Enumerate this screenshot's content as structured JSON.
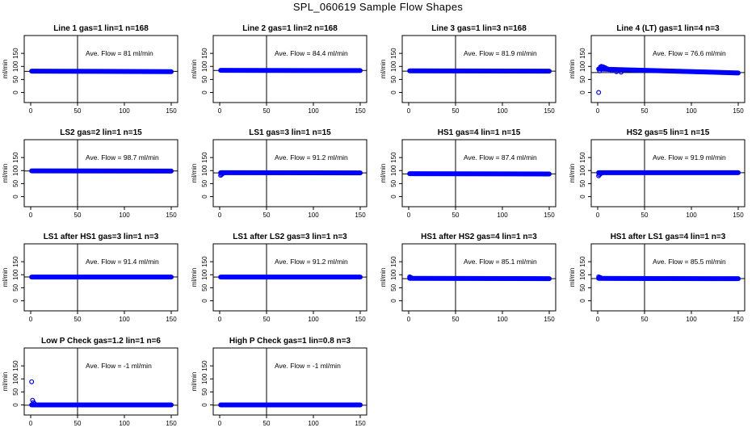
{
  "page": {
    "title": "SPL_060619  Sample Flow Shapes"
  },
  "style": {
    "point_color": "#0000ff",
    "axis_color": "#000000",
    "background": "#ffffff"
  },
  "axes": {
    "xlim": [
      0,
      150
    ],
    "ylim": [
      -20,
      200
    ],
    "xticks": [
      0,
      50,
      100,
      150
    ],
    "yticks": [
      0,
      50,
      100,
      150
    ],
    "ylabel": "ml/min",
    "vline_x": 50
  },
  "chart_data": [
    {
      "type": "scatter",
      "title": "Line 1 gas=1 lin=1 n=168",
      "annotation": "Ave. Flow =  81  ml/min",
      "ave": 81,
      "hline": 81,
      "y_start": 82,
      "y_end": 80,
      "points": []
    },
    {
      "type": "scatter",
      "title": "Line 2 gas=1 lin=2 n=168",
      "annotation": "Ave. Flow =  84.4  ml/min",
      "ave": 84.4,
      "hline": 84.4,
      "y_start": 85,
      "y_end": 84,
      "points": []
    },
    {
      "type": "scatter",
      "title": "Line 3 gas=1 lin=3 n=168",
      "annotation": "Ave. Flow =  81.9  ml/min",
      "ave": 81.9,
      "hline": 81.9,
      "y_start": 83,
      "y_end": 82,
      "points": []
    },
    {
      "type": "scatter",
      "title": "Line 4 (LT) gas=1 lin=4 n=3",
      "annotation": "Ave. Flow =  76.6  ml/min",
      "ave": 76.6,
      "hline": 76.6,
      "y_start": 90,
      "y_end": 75,
      "points": [
        [
          1,
          0
        ],
        [
          2,
          83
        ],
        [
          3,
          98
        ],
        [
          4,
          100
        ],
        [
          5,
          99
        ],
        [
          6,
          98
        ],
        [
          8,
          95
        ],
        [
          10,
          91
        ],
        [
          12,
          88
        ],
        [
          15,
          84
        ],
        [
          20,
          80
        ],
        [
          25,
          78
        ]
      ]
    },
    {
      "type": "scatter",
      "title": "LS2 gas=2 lin=1 n=15",
      "annotation": "Ave. Flow =  98.7  ml/min",
      "ave": 98.7,
      "hline": 98.7,
      "y_start": 99,
      "y_end": 98,
      "points": []
    },
    {
      "type": "scatter",
      "title": "LS1 gas=3 lin=1 n=15",
      "annotation": "Ave. Flow =  91.2  ml/min",
      "ave": 91.2,
      "hline": 91.2,
      "y_start": 92,
      "y_end": 91,
      "points": [
        [
          1,
          82
        ],
        [
          2,
          85
        ],
        [
          3,
          88
        ],
        [
          4,
          90
        ]
      ]
    },
    {
      "type": "scatter",
      "title": "HS1 gas=4 lin=1 n=15",
      "annotation": "Ave. Flow =  87.4  ml/min",
      "ave": 87.4,
      "hline": 87.4,
      "y_start": 88,
      "y_end": 87,
      "points": []
    },
    {
      "type": "scatter",
      "title": "HS2 gas=5 lin=1 n=15",
      "annotation": "Ave. Flow =  91.9  ml/min",
      "ave": 91.9,
      "hline": 91.9,
      "y_start": 92,
      "y_end": 92,
      "points": [
        [
          1,
          80
        ],
        [
          2,
          84
        ],
        [
          3,
          88
        ],
        [
          4,
          90
        ]
      ]
    },
    {
      "type": "scatter",
      "title": "LS1 after HS1 gas=3 lin=1 n=3",
      "annotation": "Ave. Flow =  91.4  ml/min",
      "ave": 91.4,
      "hline": 91.4,
      "y_start": 91,
      "y_end": 91,
      "points": []
    },
    {
      "type": "scatter",
      "title": "LS1 after LS2 gas=3 lin=1 n=3",
      "annotation": "Ave. Flow =  91.2  ml/min",
      "ave": 91.2,
      "hline": 91.2,
      "y_start": 91,
      "y_end": 91,
      "points": []
    },
    {
      "type": "scatter",
      "title": "HS1 after HS2 gas=4 lin=1 n=3",
      "annotation": "Ave. Flow =  85.1  ml/min",
      "ave": 85.1,
      "hline": 85.1,
      "y_start": 86,
      "y_end": 85,
      "points": [
        [
          1,
          92
        ],
        [
          2,
          90
        ],
        [
          3,
          88
        ]
      ]
    },
    {
      "type": "scatter",
      "title": "HS1 after LS1 gas=4 lin=1 n=3",
      "annotation": "Ave. Flow =  85.5  ml/min",
      "ave": 85.5,
      "hline": 85.5,
      "y_start": 86,
      "y_end": 85,
      "points": [
        [
          1,
          92
        ],
        [
          2,
          90
        ],
        [
          3,
          89
        ]
      ]
    },
    {
      "type": "scatter",
      "title": "Low P Check gas=1.2 lin=1 n=6",
      "annotation": "Ave. Flow =  -1  ml/min",
      "ave": -1,
      "hline": -1,
      "y_start": 0,
      "y_end": 0,
      "points": [
        [
          1,
          89
        ],
        [
          2,
          18
        ],
        [
          3,
          10
        ],
        [
          4,
          5
        ]
      ]
    },
    {
      "type": "scatter",
      "title": "High P Check gas=1 lin=0.8 n=3",
      "annotation": "Ave. Flow =  -1  ml/min",
      "ave": -1,
      "hline": -1,
      "y_start": 0,
      "y_end": 0,
      "points": []
    }
  ]
}
